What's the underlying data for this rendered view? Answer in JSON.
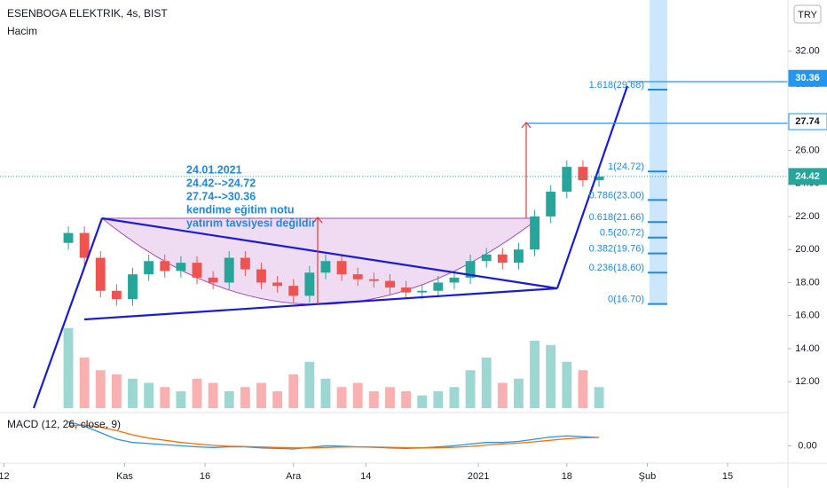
{
  "chart_data": {
    "type": "candlestick",
    "title": "ESENBOGA ELEKTRIK, 4s, BIST",
    "volume_label": "Hacim",
    "currency": "TRY",
    "x": [
      8,
      10,
      12,
      14,
      16,
      18,
      20,
      22,
      24,
      26,
      28,
      30,
      32,
      34,
      36,
      38,
      40,
      42,
      44,
      46,
      48,
      50,
      52,
      54,
      56,
      58,
      60,
      62,
      64,
      66,
      68,
      70,
      72,
      74
    ],
    "open": [
      20.4,
      21.0,
      19.5,
      17.5,
      17.0,
      18.5,
      19.3,
      18.7,
      19.2,
      18.3,
      18.0,
      19.5,
      18.8,
      18.0,
      17.8,
      17.2,
      18.6,
      19.3,
      18.5,
      18.2,
      18.1,
      17.7,
      17.4,
      17.5,
      18.0,
      18.3,
      19.3,
      19.7,
      19.2,
      20.0,
      22.0,
      23.5,
      25.0,
      24.2
    ],
    "high": [
      21.4,
      21.4,
      19.9,
      17.9,
      18.9,
      19.7,
      19.7,
      19.6,
      19.6,
      18.7,
      19.9,
      19.9,
      19.2,
      18.4,
      18.2,
      19.0,
      19.7,
      19.7,
      18.9,
      18.6,
      18.5,
      18.1,
      17.9,
      18.4,
      18.7,
      19.7,
      20.1,
      20.1,
      20.4,
      22.4,
      23.9,
      25.4,
      25.4,
      24.8
    ],
    "low": [
      20.0,
      19.1,
      17.1,
      16.6,
      16.6,
      18.1,
      18.3,
      18.3,
      17.9,
      17.6,
      17.6,
      18.4,
      17.6,
      17.4,
      16.8,
      16.8,
      18.2,
      18.1,
      17.8,
      17.7,
      17.3,
      17.0,
      17.0,
      17.1,
      17.6,
      17.9,
      18.9,
      18.8,
      18.8,
      19.6,
      21.6,
      23.1,
      23.8,
      23.8
    ],
    "close": [
      21.0,
      19.5,
      17.5,
      17.0,
      18.5,
      19.3,
      18.7,
      19.2,
      18.3,
      18.0,
      19.5,
      18.8,
      18.0,
      17.8,
      17.2,
      18.6,
      19.3,
      18.5,
      18.2,
      18.1,
      17.7,
      17.4,
      17.5,
      18.0,
      18.3,
      19.3,
      19.7,
      19.2,
      20.0,
      22.0,
      23.5,
      25.0,
      24.2,
      24.42
    ],
    "volume": [
      95,
      60,
      45,
      40,
      35,
      30,
      25,
      20,
      35,
      30,
      20,
      25,
      30,
      20,
      40,
      55,
      35,
      25,
      30,
      20,
      25,
      20,
      15,
      20,
      25,
      45,
      60,
      30,
      35,
      80,
      75,
      55,
      45,
      25
    ],
    "volume_lim": [
      0,
      100
    ],
    "up_color": "#26a69a",
    "down_color": "#ef5350",
    "xlim": [
      -0.5,
      97.5
    ],
    "xticks": [
      {
        "value": 0,
        "label": "12"
      },
      {
        "value": 15,
        "label": "Kas"
      },
      {
        "value": 25,
        "label": "16"
      },
      {
        "value": 36,
        "label": "Ara"
      },
      {
        "value": 45,
        "label": "14"
      },
      {
        "value": 59,
        "label": "2021"
      },
      {
        "value": 70,
        "label": "18"
      },
      {
        "value": 80,
        "label": "Şub"
      },
      {
        "value": 90,
        "label": "15"
      }
    ],
    "ylim": [
      10.4,
      35.1
    ],
    "yticks": [
      {
        "value": 12,
        "label": "12.00"
      },
      {
        "value": 14,
        "label": "14.00"
      },
      {
        "value": 16,
        "label": "16.00"
      },
      {
        "value": 18,
        "label": "18.00"
      },
      {
        "value": 20,
        "label": "20.00"
      },
      {
        "value": 22,
        "label": "22.00"
      },
      {
        "value": 24,
        "label": "24.00"
      },
      {
        "value": 26,
        "label": "26.00"
      },
      {
        "value": 28,
        "label": "28.00"
      },
      {
        "value": 30,
        "label": "30.00"
      },
      {
        "value": 32,
        "label": "32.00"
      }
    ],
    "price_labels": [
      {
        "value": 30.36,
        "label": "30.36",
        "color": "#2196f3"
      },
      {
        "value": 27.74,
        "label": "27.74",
        "color": "#2196f3"
      },
      {
        "value": 24.42,
        "label": "24.42",
        "color": "#26a69a"
      }
    ],
    "fib_levels": [
      {
        "value": 29.68,
        "label": "1.618(29.68)"
      },
      {
        "value": 24.72,
        "label": "1(24.72)"
      },
      {
        "value": 23.0,
        "label": "0.786(23.00)"
      },
      {
        "value": 21.66,
        "label": "0.618(21.66)"
      },
      {
        "value": 20.72,
        "label": "0.5(20.72)"
      },
      {
        "value": 19.76,
        "label": "0.382(19.76)"
      },
      {
        "value": 18.6,
        "label": "0.236(18.60)"
      },
      {
        "value": 16.7,
        "label": "0(16.70)"
      }
    ],
    "note_lines": [
      "24.01.2021",
      "24.42-->24.72",
      "27.74-->30.36",
      "kendime eğitim notu",
      "yatırım tavsiyesi değildir"
    ],
    "macd": {
      "title": "MACD (12, 26, close, 9)",
      "ylim": [
        -0.8,
        1.4
      ],
      "yticks": [
        {
          "value": 0,
          "label": "0.00"
        }
      ],
      "series": [
        {
          "color": "#2196f3",
          "values": [
            1.1,
            0.9,
            0.6,
            0.3,
            0.15,
            0.1,
            0.05,
            0.0,
            -0.05,
            -0.08,
            -0.05,
            -0.05,
            -0.1,
            -0.12,
            -0.15,
            -0.08,
            0.0,
            -0.02,
            -0.05,
            -0.07,
            -0.1,
            -0.12,
            -0.1,
            -0.05,
            0.0,
            0.08,
            0.15,
            0.15,
            0.2,
            0.3,
            0.4,
            0.45,
            0.42,
            0.38
          ]
        },
        {
          "color": "#ff6d00",
          "values": [
            0.9,
            0.95,
            0.85,
            0.7,
            0.5,
            0.35,
            0.25,
            0.15,
            0.08,
            0.02,
            -0.02,
            -0.04,
            -0.06,
            -0.08,
            -0.1,
            -0.1,
            -0.08,
            -0.06,
            -0.05,
            -0.06,
            -0.07,
            -0.09,
            -0.1,
            -0.09,
            -0.07,
            -0.03,
            0.03,
            0.08,
            0.12,
            0.18,
            0.25,
            0.32,
            0.36,
            0.38
          ]
        }
      ]
    }
  }
}
